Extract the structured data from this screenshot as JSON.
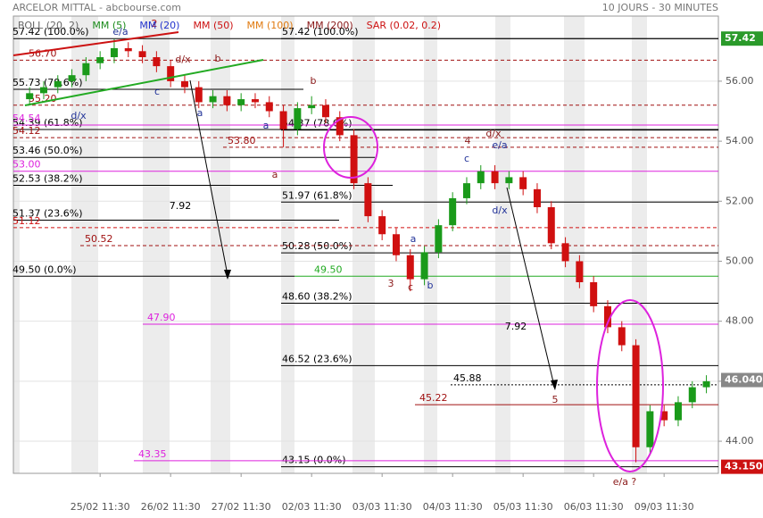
{
  "chart_data": {
    "type": "candlestick",
    "title": "ARCELOR MITTAL - abcbourse.com",
    "subtitle": "10 JOURS - 30 MINUTES",
    "indicators": [
      {
        "name": "BOLL (20, 2)",
        "color": "#666666"
      },
      {
        "name": "MM (5)",
        "color": "#1a8a1a"
      },
      {
        "name": "MM (20)",
        "color": "#2233cc"
      },
      {
        "name": "MM (50)",
        "color": "#cc1111"
      },
      {
        "name": "MM (100)",
        "color": "#e07a10"
      },
      {
        "name": "MM (200)",
        "color": "#8b1a1a"
      },
      {
        "name": "SAR (0.02, 0.2)",
        "color": "#cc1111"
      }
    ],
    "x": [
      -1.0,
      -0.8,
      -0.6,
      -0.4,
      -0.2,
      0.0,
      0.2,
      0.4,
      0.6,
      0.8,
      1.0,
      1.2,
      1.4,
      1.6,
      1.8,
      2.0,
      2.2,
      2.4,
      2.6,
      2.8,
      3.0,
      3.2,
      3.4,
      3.6,
      3.8,
      4.0,
      4.2,
      4.4,
      4.6,
      4.8,
      5.0,
      5.2,
      5.4,
      5.6,
      5.8,
      6.0,
      6.2,
      6.4,
      6.6,
      6.8,
      7.0,
      7.2,
      7.4,
      7.6,
      7.8,
      8.0,
      8.2,
      8.4,
      8.6
    ],
    "open": [
      55.4,
      55.6,
      55.8,
      56.0,
      56.2,
      56.6,
      56.8,
      57.1,
      57.0,
      56.8,
      56.5,
      56.0,
      55.8,
      55.3,
      55.5,
      55.2,
      55.4,
      55.3,
      55.0,
      54.4,
      55.1,
      55.2,
      54.8,
      54.2,
      52.6,
      51.5,
      50.9,
      50.2,
      49.4,
      50.3,
      51.2,
      52.1,
      52.6,
      53.0,
      52.6,
      52.8,
      52.4,
      51.8,
      50.6,
      50.0,
      49.3,
      48.5,
      47.8,
      47.2,
      43.8,
      45.0,
      44.7,
      45.3,
      45.8
    ],
    "high": [
      55.8,
      56.0,
      56.2,
      56.4,
      56.8,
      57.0,
      57.4,
      57.3,
      57.2,
      57.0,
      56.7,
      56.2,
      56.0,
      55.7,
      55.7,
      55.6,
      55.6,
      55.5,
      55.2,
      55.3,
      55.5,
      55.4,
      55.0,
      54.4,
      52.8,
      51.7,
      51.1,
      50.4,
      50.5,
      51.4,
      52.3,
      52.8,
      53.2,
      53.2,
      53.0,
      53.0,
      52.6,
      52.0,
      50.8,
      50.2,
      49.5,
      48.7,
      48.0,
      47.4,
      45.2,
      45.2,
      45.5,
      46.0,
      46.2
    ],
    "low": [
      55.2,
      55.4,
      55.6,
      55.8,
      56.0,
      56.4,
      56.6,
      56.8,
      56.6,
      56.3,
      55.8,
      55.6,
      55.1,
      55.1,
      55.0,
      55.0,
      55.1,
      54.8,
      53.8,
      54.2,
      54.9,
      54.6,
      54.0,
      52.4,
      51.3,
      50.7,
      50.0,
      49.0,
      49.2,
      50.1,
      51.0,
      51.9,
      52.4,
      52.4,
      52.4,
      52.2,
      51.6,
      50.4,
      49.8,
      49.1,
      48.3,
      47.6,
      47.0,
      43.3,
      43.6,
      44.5,
      44.5,
      45.1,
      45.6
    ],
    "close": [
      55.6,
      55.8,
      56.0,
      56.2,
      56.6,
      56.8,
      57.1,
      57.0,
      56.8,
      56.5,
      56.0,
      55.8,
      55.3,
      55.5,
      55.2,
      55.4,
      55.3,
      55.0,
      54.4,
      55.1,
      55.2,
      54.8,
      54.2,
      52.6,
      51.5,
      50.9,
      50.2,
      49.4,
      50.3,
      51.2,
      52.1,
      52.6,
      53.0,
      52.6,
      52.8,
      52.4,
      51.8,
      50.6,
      50.0,
      49.3,
      48.5,
      47.8,
      47.2,
      43.8,
      45.0,
      44.7,
      45.3,
      45.8,
      46.0
    ],
    "up_color": "#1a9a1a",
    "down_color": "#d01010",
    "xlim": [
      -1.23,
      8.77
    ],
    "xticks": [
      {
        "value": 0,
        "label": "25/02 11:30"
      },
      {
        "value": 1,
        "label": "26/02 11:30"
      },
      {
        "value": 2,
        "label": "27/02 11:30"
      },
      {
        "value": 3,
        "label": "02/03 11:30"
      },
      {
        "value": 4,
        "label": "03/03 11:30"
      },
      {
        "value": 5,
        "label": "04/03 11:30"
      },
      {
        "value": 6,
        "label": "05/03 11:30"
      },
      {
        "value": 7,
        "label": "06/03 11:30"
      },
      {
        "value": 8,
        "label": "09/03 11:30"
      }
    ],
    "ylim": [
      42.93,
      58.17
    ],
    "yticks": [
      {
        "value": 44,
        "label": "44.00"
      },
      {
        "value": 46,
        "label": "46.00"
      },
      {
        "value": 48,
        "label": "48.00"
      },
      {
        "value": 50,
        "label": "50.00"
      },
      {
        "value": 52,
        "label": "52.00"
      },
      {
        "value": 54,
        "label": "54.00"
      },
      {
        "value": 56,
        "label": "56.00"
      }
    ],
    "grid": true,
    "levels": [
      {
        "value": 57.42,
        "label": "57.42 (100.0%)",
        "color": "#000000",
        "style": "solid"
      },
      {
        "value": 55.73,
        "label": "55.73 (78.6%)",
        "color": "#000000",
        "style": "solid"
      },
      {
        "value": 54.39,
        "label": "54.39 (61.8%)",
        "color": "#000000",
        "style": "solid"
      },
      {
        "value": 53.46,
        "label": "53.46 (50.0%)",
        "color": "#000000",
        "style": "solid"
      },
      {
        "value": 52.53,
        "label": "52.53 (38.2%)",
        "color": "#000000",
        "style": "solid"
      },
      {
        "value": 51.37,
        "label": "51.37 (23.6%)",
        "color": "#000000",
        "style": "solid"
      },
      {
        "value": 49.5,
        "label": "49.50 (0.0%)",
        "color": "#000000",
        "style": "solid"
      },
      {
        "value": 57.42,
        "label": "57.42 (100.0%)",
        "color": "#000000",
        "style": "solid"
      },
      {
        "value": 54.37,
        "label": "54.37 (78.6%)",
        "color": "#000000",
        "style": "solid"
      },
      {
        "value": 51.97,
        "label": "51.97 (61.8%)",
        "color": "#000000",
        "style": "solid"
      },
      {
        "value": 50.28,
        "label": "50.28 (50.0%)",
        "color": "#000000",
        "style": "solid"
      },
      {
        "value": 48.6,
        "label": "48.60 (38.2%)",
        "color": "#000000",
        "style": "solid"
      },
      {
        "value": 46.52,
        "label": "46.52 (23.6%)",
        "color": "#000000",
        "style": "solid"
      },
      {
        "value": 43.15,
        "label": "43.15 (0.0%)",
        "color": "#000000",
        "style": "solid"
      },
      {
        "value": 56.7,
        "label": "56.70",
        "color": "#a01010",
        "style": "dashed"
      },
      {
        "value": 55.2,
        "label": "55.20",
        "color": "#a01010",
        "style": "dashed"
      },
      {
        "value": 54.12,
        "label": "54.12",
        "color": "#a01010",
        "style": "dashed"
      },
      {
        "value": 53.8,
        "label": "53.80",
        "color": "#a01010",
        "style": "dashed"
      },
      {
        "value": 51.12,
        "label": "51.12",
        "color": "#d01010",
        "style": "dashed"
      },
      {
        "value": 50.52,
        "label": "50.52",
        "color": "#a01010",
        "style": "dashed"
      },
      {
        "value": 45.22,
        "label": "45.22",
        "color": "#a01010",
        "style": "solid"
      },
      {
        "value": 54.54,
        "label": "54.54",
        "color": "#dd22dd",
        "style": "solid"
      },
      {
        "value": 53.0,
        "label": "53.00",
        "color": "#dd22dd",
        "style": "solid"
      },
      {
        "value": 47.9,
        "label": "47.90",
        "color": "#dd22dd",
        "style": "solid"
      },
      {
        "value": 43.35,
        "label": "43.35",
        "color": "#dd22dd",
        "style": "solid"
      },
      {
        "value": 49.5,
        "label": "49.50",
        "color": "#22aa22",
        "style": "solid"
      },
      {
        "value": 45.88,
        "label": "45.88",
        "color": "#000000",
        "style": "dotted"
      }
    ],
    "price_tags": [
      {
        "value": 57.42,
        "label": "57.42",
        "color": "#2a9a2a"
      },
      {
        "value": 46.04,
        "label": "46.040",
        "color": "#888888"
      },
      {
        "value": 43.15,
        "label": "43.150",
        "color": "#cc1111"
      }
    ],
    "annotations": [
      "2",
      "3",
      "c",
      "b",
      "4",
      "d/x",
      "e/a",
      "5",
      "e/a ?",
      "a",
      "b",
      "7.92",
      "7.92",
      "a",
      "c",
      "d/x",
      "a",
      "c",
      "d/x",
      "b",
      "d/x",
      "e/a",
      "a"
    ]
  }
}
